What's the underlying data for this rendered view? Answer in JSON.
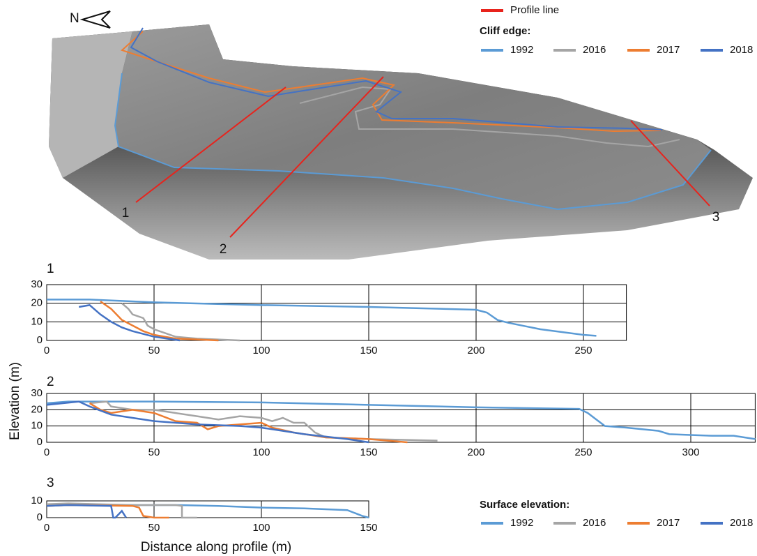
{
  "map": {
    "north": "N",
    "profile_line": {
      "label": "Profile line",
      "color": "#e8231c"
    },
    "cliff_edge": {
      "title": "Cliff edge:",
      "series": [
        {
          "name": "1992",
          "color": "#5b9bd5"
        },
        {
          "name": "2016",
          "color": "#a5a5a5"
        },
        {
          "name": "2017",
          "color": "#ed7d31"
        },
        {
          "name": "2018",
          "color": "#4472c4"
        }
      ]
    },
    "profiles": [
      "1",
      "2",
      "3"
    ]
  },
  "y_label": "Elevation (m)",
  "chart_data": [
    {
      "type": "line",
      "title": "1",
      "xlim": [
        0,
        270
      ],
      "xticks": [
        0,
        50,
        100,
        150,
        200,
        250
      ],
      "ylim": [
        0,
        30
      ],
      "yticks": [
        0,
        10,
        20,
        30
      ],
      "grid": true,
      "series": [
        {
          "color": "#5b9bd5",
          "x": [
            0,
            20,
            50,
            100,
            150,
            200,
            205,
            210,
            215,
            230,
            250,
            256
          ],
          "values": [
            22,
            22,
            20.5,
            19,
            18,
            16.5,
            15,
            11,
            9.5,
            6,
            3,
            2.5
          ]
        },
        {
          "color": "#a5a5a5",
          "x": [
            35,
            38,
            40,
            45,
            47,
            50,
            55,
            60,
            70,
            90
          ],
          "values": [
            20,
            17,
            14,
            12,
            8,
            6,
            4,
            2,
            1,
            0
          ]
        },
        {
          "color": "#ed7d31",
          "x": [
            25,
            30,
            35,
            40,
            45,
            50,
            60,
            80
          ],
          "values": [
            21,
            17,
            11,
            8,
            5,
            3,
            1,
            0
          ]
        },
        {
          "color": "#4472c4",
          "x": [
            15,
            20,
            25,
            30,
            35,
            40,
            50,
            62
          ],
          "values": [
            18,
            19,
            14,
            10,
            7,
            5,
            2,
            0
          ]
        }
      ]
    },
    {
      "type": "line",
      "title": "2",
      "xlim": [
        0,
        330
      ],
      "xticks": [
        0,
        50,
        100,
        150,
        200,
        250,
        300
      ],
      "ylim": [
        0,
        30
      ],
      "yticks": [
        0,
        10,
        20,
        30
      ],
      "grid": true,
      "series": [
        {
          "color": "#5b9bd5",
          "x": [
            0,
            10,
            50,
            100,
            150,
            200,
            248,
            252,
            256,
            260,
            270,
            285,
            290,
            310,
            320,
            330
          ],
          "values": [
            24,
            25,
            25,
            24.5,
            23,
            21.5,
            20.5,
            18,
            14,
            10,
            9,
            7,
            5,
            4,
            4,
            2
          ]
        },
        {
          "color": "#a5a5a5",
          "x": [
            20,
            28,
            30,
            40,
            50,
            60,
            70,
            80,
            90,
            100,
            105,
            110,
            115,
            120,
            125,
            130,
            150,
            182
          ],
          "values": [
            24,
            25,
            22,
            20,
            20,
            18,
            16,
            14,
            16,
            15,
            13,
            15,
            12,
            12,
            6,
            3,
            2,
            1
          ]
        },
        {
          "color": "#ed7d31",
          "x": [
            20,
            25,
            30,
            40,
            50,
            60,
            70,
            75,
            80,
            90,
            100,
            105,
            115,
            130,
            150,
            168
          ],
          "values": [
            24,
            20,
            18,
            20,
            18,
            13,
            12,
            8,
            10,
            11,
            12,
            9,
            6,
            3,
            2,
            0
          ]
        },
        {
          "color": "#4472c4",
          "x": [
            0,
            15,
            20,
            30,
            40,
            50,
            70,
            90,
            100,
            110,
            120,
            140,
            150
          ],
          "values": [
            23,
            25,
            22,
            17,
            15,
            13,
            11,
            10,
            9,
            7,
            5,
            2,
            0
          ]
        }
      ]
    },
    {
      "type": "line",
      "title": "3",
      "x_label": "Distance along profile (m)",
      "xlim": [
        0,
        150
      ],
      "xticks": [
        0,
        50,
        100,
        150
      ],
      "ylim": [
        0,
        10
      ],
      "yticks": [
        0,
        10
      ],
      "grid": true,
      "legend_title": "Surface elevation:",
      "series": [
        {
          "name": "1992",
          "color": "#5b9bd5",
          "x": [
            0,
            10,
            30,
            50,
            60,
            80,
            100,
            120,
            140,
            147,
            150
          ],
          "values": [
            8,
            8,
            7.5,
            7.5,
            7.5,
            7,
            6,
            5.5,
            4.5,
            1,
            0
          ]
        },
        {
          "name": "2016",
          "color": "#a5a5a5",
          "x": [
            0,
            10,
            40,
            60,
            63,
            63,
            70
          ],
          "values": [
            8,
            8.5,
            7.5,
            7.5,
            7,
            0,
            0
          ]
        },
        {
          "name": "2017",
          "color": "#ed7d31",
          "x": [
            0,
            10,
            40,
            43,
            45,
            50,
            57
          ],
          "values": [
            7,
            7.5,
            7,
            6,
            1,
            0,
            0
          ]
        },
        {
          "name": "2018",
          "color": "#4472c4",
          "x": [
            0,
            10,
            30,
            31,
            32,
            35,
            37
          ],
          "values": [
            7,
            7.5,
            7,
            0,
            0,
            4,
            0
          ]
        }
      ]
    }
  ]
}
